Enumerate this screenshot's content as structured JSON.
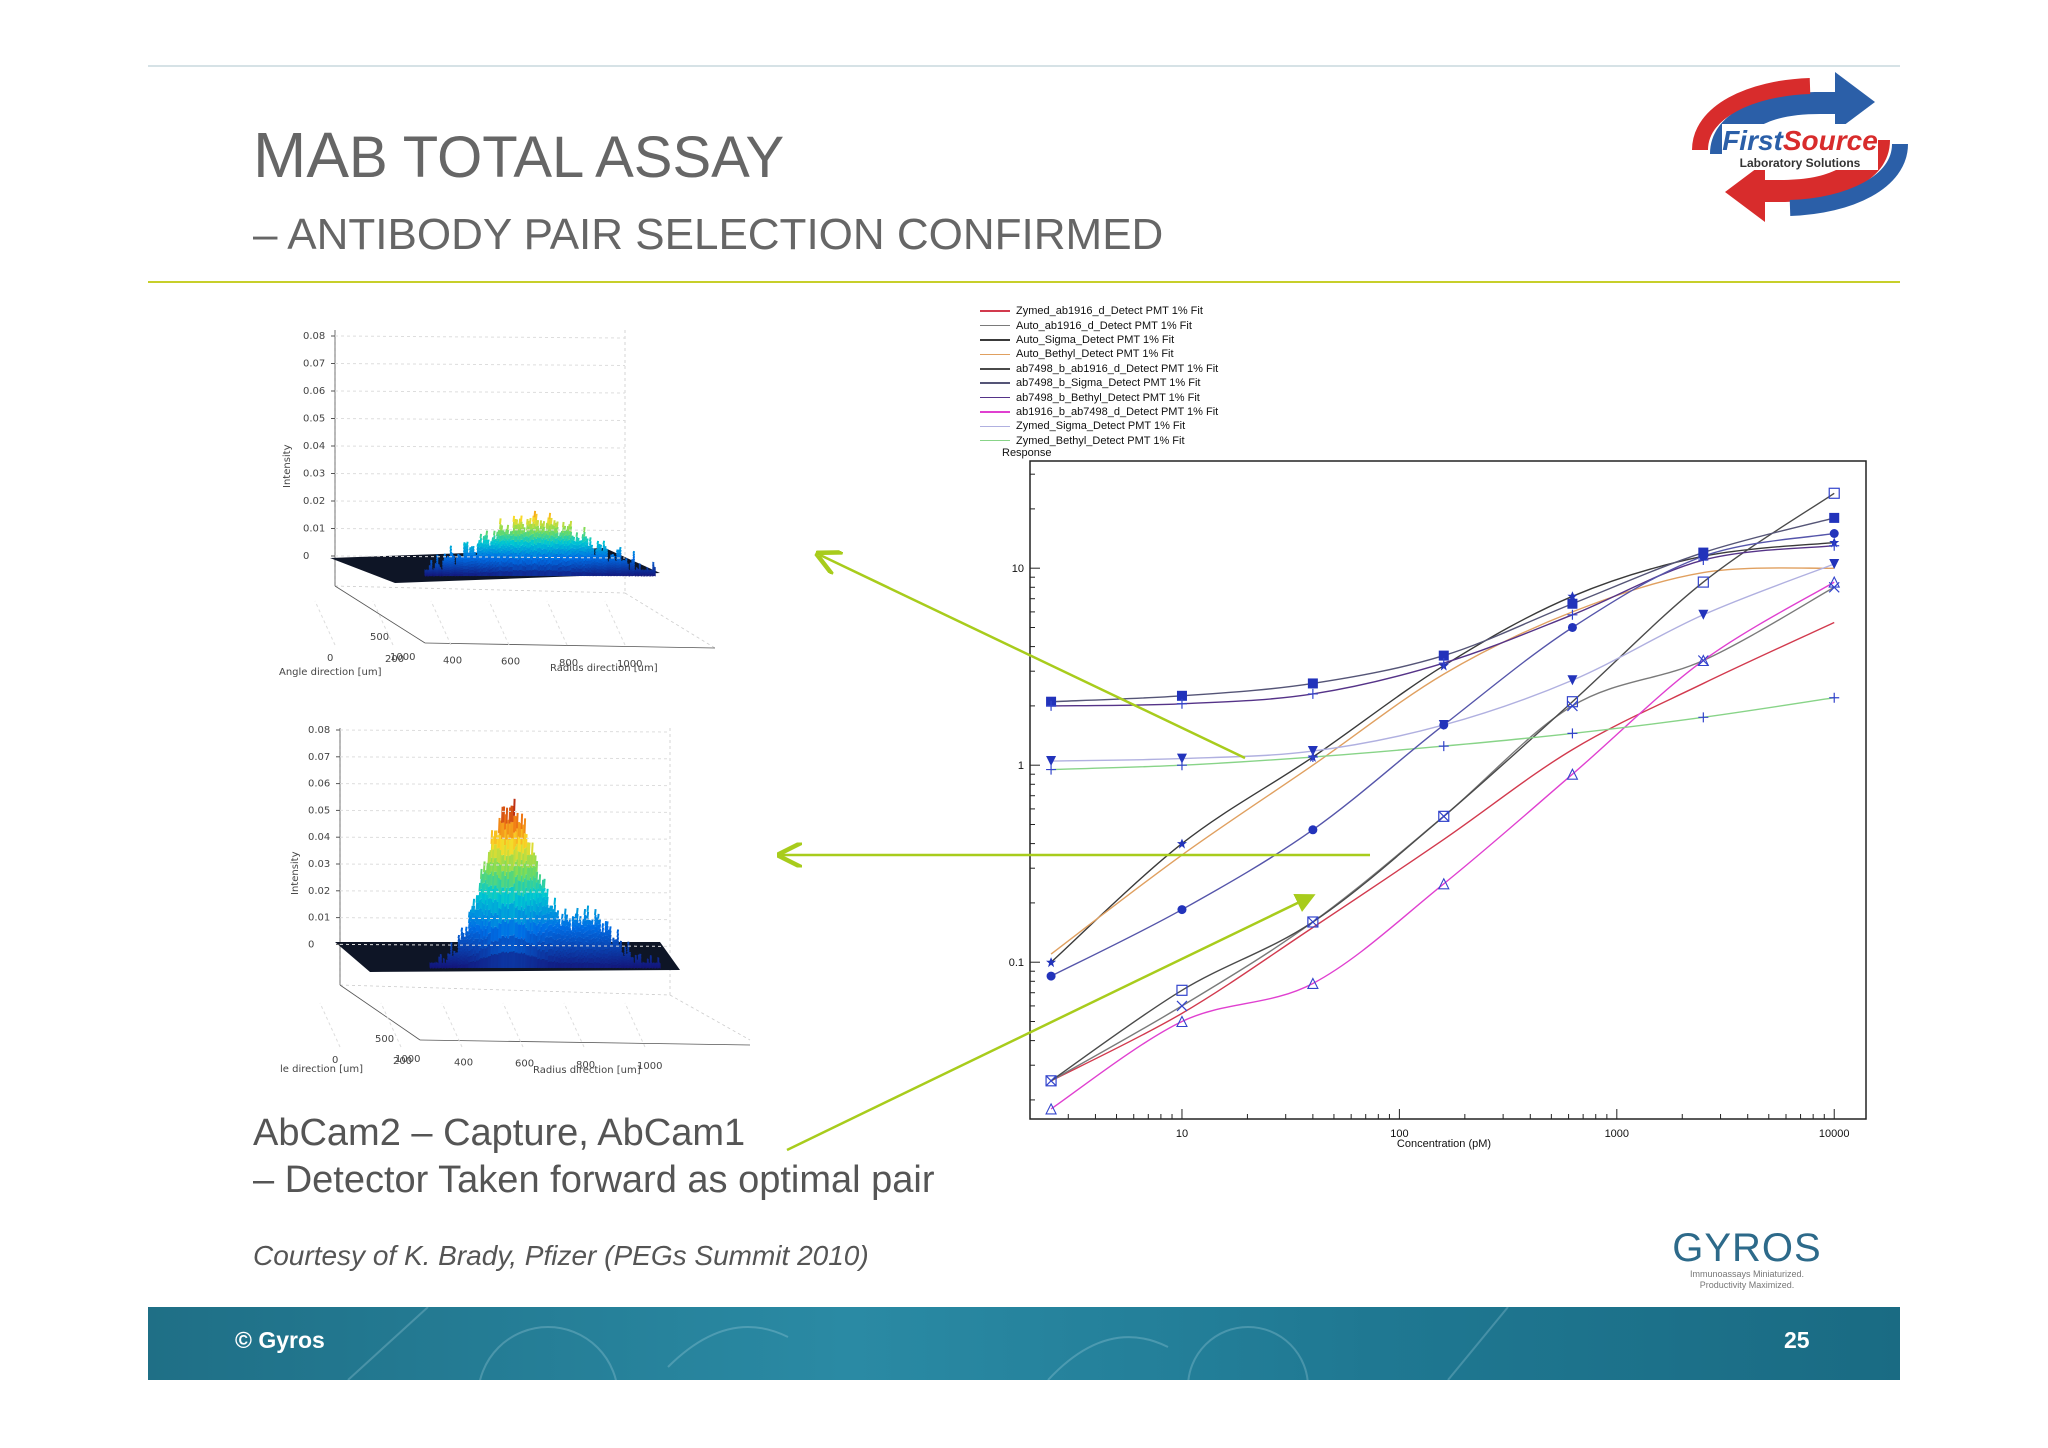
{
  "slide": {
    "title_prefix_big": "MA",
    "title_rest": "B TOTAL ASSAY",
    "subtitle": "– ANTIBODY PAIR SELECTION CONFIRMED",
    "caption_line1": "AbCam2 – Capture, AbCam1",
    "caption_line2": "– Detector Taken forward as optimal pair",
    "courtesy": "Courtesy of K. Brady, Pfizer (PEGs Summit 2010)",
    "footer_left": "© Gyros",
    "page_number": "25"
  },
  "logos": {
    "firstsource_name_a": "First",
    "firstsource_name_b": "Source",
    "firstsource_tag": "Laboratory Solutions",
    "gyros_name": "GYROS",
    "gyros_tag1": "Immunoassays Miniaturized.",
    "gyros_tag2": "Productivity Maximized."
  },
  "colors": {
    "accent_rule": "#c7cf2a",
    "arrow": "#a8cc1c",
    "footer": "#2a8aa4"
  },
  "surface_plots": {
    "top": {
      "z_ticks": [
        "0.08",
        "0.07",
        "0.06",
        "0.05",
        "0.04",
        "0.03",
        "0.02",
        "0.01",
        "0"
      ],
      "z_label": "Intensity",
      "x_ticks": [
        "0",
        "200",
        "400",
        "600",
        "800",
        "1000"
      ],
      "x_label": "Radius direction [um]",
      "y_ticks": [
        "500",
        "1000"
      ],
      "y_label": "Angle direction [um]"
    },
    "bottom": {
      "z_ticks": [
        "0.08",
        "0.07",
        "0.06",
        "0.05",
        "0.04",
        "0.03",
        "0.02",
        "0.01",
        "0"
      ],
      "z_label": "Intensity",
      "x_ticks": [
        "0",
        "200",
        "400",
        "600",
        "800",
        "1000"
      ],
      "x_label": "Radius direction [um]",
      "y_ticks": [
        "500",
        "1000"
      ],
      "y_label": "le direction [um]"
    }
  },
  "chart_data": {
    "type": "line",
    "xlabel": "Concentration (pM)",
    "ylabel": "Response",
    "x_scale": "log",
    "y_scale": "log",
    "xlim": [
      2,
      14000
    ],
    "ylim": [
      0.016,
      35
    ],
    "x_ticks": [
      10,
      100,
      1000,
      10000
    ],
    "x_tick_labels": [
      "10",
      "100",
      "1000",
      "10000"
    ],
    "y_ticks": [
      0.1,
      1,
      10
    ],
    "y_tick_labels": [
      "0.1",
      "1",
      "10"
    ],
    "legend_position": "top-left, above plot",
    "x_points": [
      2.5,
      10,
      40,
      160,
      625,
      2500,
      10000
    ],
    "series": [
      {
        "name": "Zymed_ab1916_d_Detect PMT 1% Fit",
        "color": "#d23a4e",
        "marker": "none",
        "values": [
          0.025,
          0.055,
          0.15,
          0.42,
          1.2,
          2.6,
          5.3
        ]
      },
      {
        "name": "Auto_ab1916_d_Detect PMT 1% Fit",
        "color": "#7a7a7a",
        "marker": "x",
        "values": [
          0.025,
          0.06,
          0.16,
          0.55,
          2.0,
          3.4,
          8.0
        ]
      },
      {
        "name": "Auto_Sigma_Detect PMT 1% Fit",
        "color": "#3a3a3a",
        "marker": "star",
        "values": [
          0.1,
          0.4,
          1.1,
          3.2,
          7.2,
          11.5,
          13.5
        ]
      },
      {
        "name": "Auto_Bethyl_Detect PMT 1% Fit",
        "color": "#e0a060",
        "marker": "none",
        "values": [
          0.11,
          0.35,
          1.0,
          2.9,
          6.0,
          9.5,
          10.0
        ]
      },
      {
        "name": "ab7498_b_ab1916_d_Detect PMT 1% Fit",
        "color": "#4a4a4a",
        "marker": "square",
        "values": [
          0.025,
          0.072,
          0.16,
          0.55,
          2.1,
          8.5,
          24
        ]
      },
      {
        "name": "ab7498_b_Sigma_Detect PMT 1% Fit",
        "color": "#555577",
        "marker": "filled-square",
        "values": [
          2.1,
          2.25,
          2.6,
          3.6,
          6.6,
          12.0,
          18.0
        ]
      },
      {
        "name": "ab7498_b_Bethyl_Detect PMT 1% Fit",
        "color": "#553388",
        "marker": "plus",
        "values": [
          2.0,
          2.05,
          2.3,
          3.3,
          5.8,
          11.0,
          13.0
        ]
      },
      {
        "name": "ab1916_b_ab7498_d_Detect PMT 1% Fit",
        "color": "#e040d0",
        "marker": "triangle",
        "values": [
          0.018,
          0.05,
          0.078,
          0.25,
          0.9,
          3.4,
          8.5
        ]
      },
      {
        "name": "Zymed_Sigma_Detect PMT 1% Fit",
        "color": "#b0b0e0",
        "marker": "filled-triangle-down",
        "values": [
          1.05,
          1.08,
          1.18,
          1.6,
          2.7,
          5.8,
          10.5
        ]
      },
      {
        "name": "Zymed_Bethyl_Detect PMT 1% Fit",
        "color": "#88d488",
        "marker": "plus",
        "values": [
          0.95,
          1.0,
          1.1,
          1.25,
          1.45,
          1.75,
          2.2
        ]
      }
    ],
    "extra_series": {
      "name": "filled circles",
      "color": "#5555aa",
      "values": [
        0.085,
        0.185,
        0.47,
        1.6,
        5.0,
        11.5,
        15.0
      ]
    }
  }
}
